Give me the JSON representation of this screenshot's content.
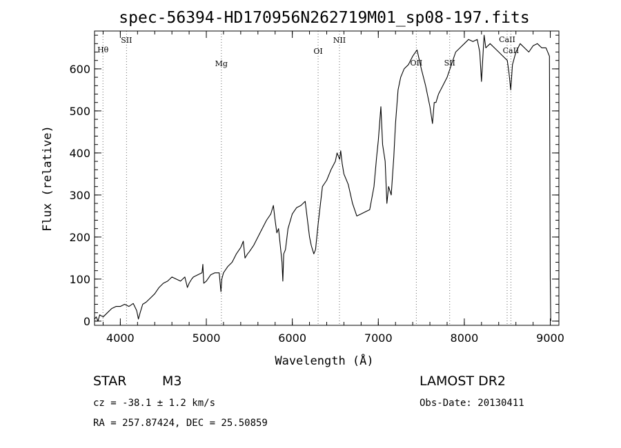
{
  "chart_data": {
    "type": "line",
    "title": "spec-56394-HD170956N262719M01_sp08-197.fits",
    "xlabel": "Wavelength (Å)",
    "ylabel": "Flux (relative)",
    "xlim": [
      3700,
      9100
    ],
    "ylim": [
      -10,
      690
    ],
    "x_ticks": [
      4000,
      5000,
      6000,
      7000,
      8000,
      9000
    ],
    "y_ticks": [
      0,
      100,
      200,
      300,
      400,
      500,
      600
    ],
    "series": [
      {
        "x": [
          3700,
          3720,
          3740,
          3760,
          3800,
          3850,
          3900,
          3950,
          4000,
          4050,
          4100,
          4150,
          4190,
          4210,
          4230,
          4260,
          4300,
          4350,
          4400,
          4450,
          4500,
          4550,
          4600,
          4650,
          4700,
          4750,
          4780,
          4800,
          4830,
          4850,
          4900,
          4950,
          4960,
          4970,
          5000,
          5050,
          5100,
          5150,
          5170,
          5180,
          5200,
          5250,
          5300,
          5350,
          5400,
          5430,
          5450,
          5480,
          5500,
          5550,
          5600,
          5650,
          5700,
          5750,
          5780,
          5800,
          5820,
          5840,
          5860,
          5880,
          5890,
          5900,
          5920,
          5950,
          6000,
          6050,
          6100,
          6150,
          6200,
          6220,
          6250,
          6270,
          6300,
          6350,
          6400,
          6450,
          6500,
          6520,
          6550,
          6563,
          6580,
          6600,
          6650,
          6700,
          6750,
          6800,
          6850,
          6900,
          6950,
          6980,
          7000,
          7030,
          7050,
          7080,
          7100,
          7120,
          7150,
          7180,
          7200,
          7230,
          7260,
          7300,
          7350,
          7400,
          7450,
          7500,
          7550,
          7600,
          7630,
          7650,
          7670,
          7700,
          7750,
          7800,
          7850,
          7900,
          7950,
          8000,
          8050,
          8100,
          8150,
          8180,
          8200,
          8230,
          8250,
          8300,
          8350,
          8400,
          8450,
          8500,
          8520,
          8540,
          8560,
          8600,
          8650,
          8700,
          8750,
          8800,
          8850,
          8900,
          8950,
          8990,
          9000,
          9005
        ],
        "y": [
          5,
          10,
          0,
          15,
          10,
          20,
          30,
          35,
          35,
          40,
          35,
          42,
          25,
          5,
          20,
          40,
          45,
          55,
          65,
          80,
          90,
          95,
          105,
          100,
          95,
          105,
          80,
          90,
          100,
          105,
          110,
          115,
          135,
          90,
          95,
          110,
          115,
          115,
          70,
          100,
          115,
          130,
          140,
          160,
          175,
          190,
          150,
          160,
          165,
          180,
          200,
          220,
          240,
          255,
          275,
          240,
          210,
          220,
          180,
          140,
          95,
          160,
          170,
          220,
          255,
          270,
          275,
          285,
          200,
          180,
          160,
          170,
          230,
          320,
          335,
          360,
          380,
          400,
          385,
          405,
          375,
          350,
          325,
          280,
          250,
          255,
          260,
          265,
          320,
          390,
          430,
          510,
          420,
          380,
          280,
          320,
          300,
          390,
          470,
          550,
          580,
          600,
          610,
          630,
          645,
          600,
          560,
          510,
          470,
          520,
          520,
          540,
          560,
          580,
          610,
          640,
          650,
          660,
          670,
          665,
          670,
          640,
          570,
          680,
          650,
          660,
          650,
          640,
          630,
          620,
          590,
          550,
          610,
          640,
          660,
          650,
          640,
          655,
          660,
          650,
          650,
          630,
          100,
          0
        ]
      }
    ],
    "line_markers": [
      {
        "label": "Hθ",
        "x": 3798
      },
      {
        "label": "SII",
        "x": 4072
      },
      {
        "label": "Mg",
        "x": 5175
      },
      {
        "label": "OI",
        "x": 6300
      },
      {
        "label": "NII",
        "x": 6548
      },
      {
        "label": "OII",
        "x": 7442
      },
      {
        "label": "SII",
        "x": 7830
      },
      {
        "label": "CaII",
        "x": 8498
      },
      {
        "label": "CaII",
        "x": 8542
      }
    ],
    "grid": false,
    "legend": "none"
  },
  "info": {
    "object_type": "STAR",
    "subclass": "M3",
    "survey": "LAMOST DR2",
    "cz": "cz = -38.1 ± 1.2 km/s",
    "obs_date": "Obs-Date: 20130411",
    "coords": "RA = 257.87424, DEC =  25.50859"
  }
}
